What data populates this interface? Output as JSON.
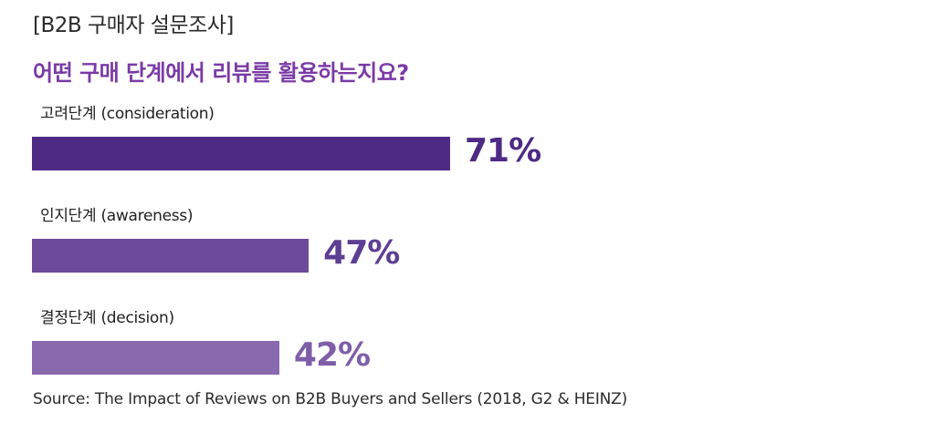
{
  "header": {
    "tag": "[B2B 구매자 설문조사]"
  },
  "question": "어떤 구매 단계에서 리뷰를 활용하는지요?",
  "source": "Source: The Impact of Reviews on B2B Buyers and Sellers (2018, G2 & HEINZ)",
  "chart_data": {
    "type": "bar",
    "orientation": "horizontal",
    "title": "어떤 구매 단계에서 리뷰를 활용하는지요?",
    "categories": [
      "고려단계 (consideration)",
      "인지단계 (awareness)",
      "결정단계 (decision)"
    ],
    "values": [
      71,
      47,
      42
    ],
    "value_labels": [
      "71%",
      "47%",
      "42%"
    ],
    "unit": "%",
    "xlim": [
      0,
      100
    ],
    "grid": false,
    "colors": [
      "#4e2a85",
      "#6c4a9a",
      "#8a6aaf"
    ],
    "label_colors": [
      "#4e2a85",
      "#5e3e93",
      "#7e5ea8"
    ]
  }
}
